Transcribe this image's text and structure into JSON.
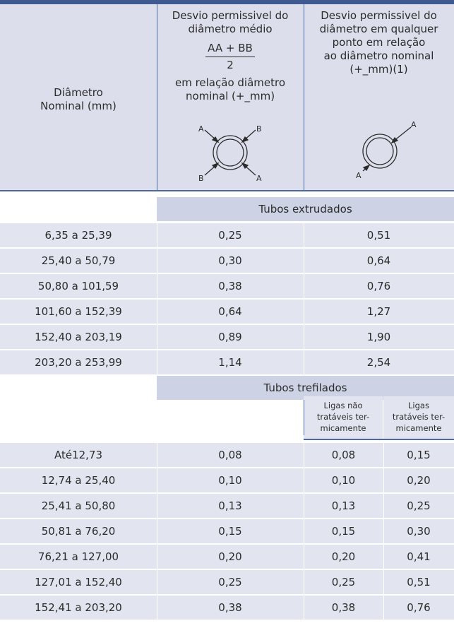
{
  "header": {
    "col1": [
      "Diâmetro",
      "Nominal (mm)"
    ],
    "col2_top": [
      "Desvio permissivel do",
      "diâmetro médio"
    ],
    "col2_formula_num": "AA + BB",
    "col2_formula_den": "2",
    "col2_bottom": [
      "em relação diâmetro",
      "nominal (+_mm)"
    ],
    "col3": [
      "Desvio permissivel do",
      "diâmetro em qualquer",
      "ponto em relação",
      "ao diâmetro nominal",
      "(+_mm)(1)"
    ],
    "diagram1_labels": {
      "tl": "A",
      "tr": "B",
      "bl": "B",
      "br": "A"
    },
    "diagram2_labels": {
      "tr": "A",
      "bl": "A"
    }
  },
  "extruded": {
    "title": "Tubos extrudados",
    "rows": [
      [
        "6,35 a 25,39",
        "0,25",
        "0,51"
      ],
      [
        "25,40 a 50,79",
        "0,30",
        "0,64"
      ],
      [
        "50,80 a 101,59",
        "0,38",
        "0,76"
      ],
      [
        "101,60 a 152,39",
        "0,64",
        "1,27"
      ],
      [
        "152,40 a 203,19",
        "0,89",
        "1,90"
      ],
      [
        "203,20 a 253,99",
        "1,14",
        "2,54"
      ]
    ]
  },
  "drawn": {
    "title": "Tubos trefilados",
    "sub1": [
      "Ligas não",
      "tratáveis ter-",
      "micamente"
    ],
    "sub2": [
      "Ligas",
      "tratáveis ter-",
      "micamente"
    ],
    "rows": [
      [
        "Até12,73",
        "0,08",
        "0,08",
        "0,15"
      ],
      [
        "12,74 a 25,40",
        "0,10",
        "0,10",
        "0,20"
      ],
      [
        "25,41 a 50,80",
        "0,13",
        "0,13",
        "0,25"
      ],
      [
        "50,81 a 76,20",
        "0,15",
        "0,15",
        "0,30"
      ],
      [
        "76,21 a 127,00",
        "0,20",
        "0,20",
        "0,41"
      ],
      [
        "127,01 a 152,40",
        "0,25",
        "0,25",
        "0,51"
      ],
      [
        "152,41 a 203,20",
        "0,38",
        "0,38",
        "0,76"
      ]
    ]
  },
  "colors": {
    "header_bg": "#dcdfeb",
    "row_bg": "#e2e5ef",
    "band_bg": "#cdd2e4",
    "accent": "#3f5a91"
  }
}
